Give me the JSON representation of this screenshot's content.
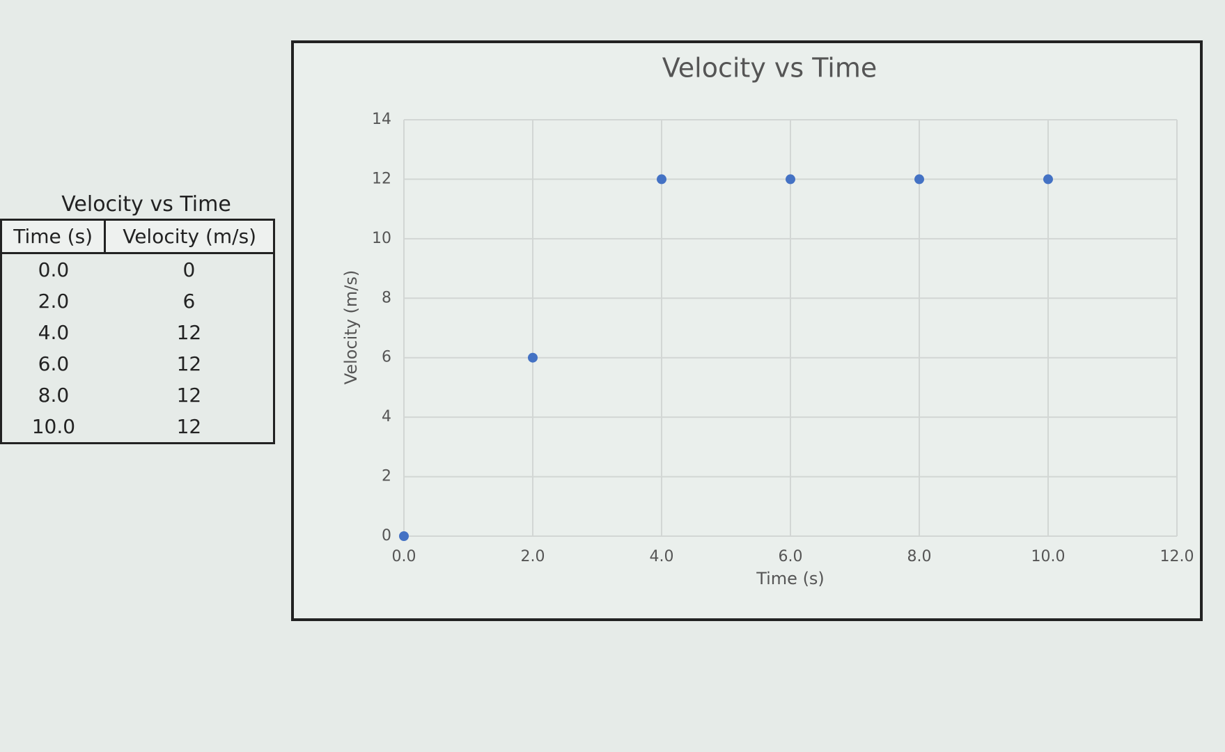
{
  "table": {
    "title": "Velocity vs Time",
    "header": [
      "Time (s)",
      "Velocity (m/s)"
    ],
    "rows": [
      [
        "0.0",
        "0"
      ],
      [
        "2.0",
        "6"
      ],
      [
        "4.0",
        "12"
      ],
      [
        "6.0",
        "12"
      ],
      [
        "8.0",
        "12"
      ],
      [
        "10.0",
        "12"
      ]
    ]
  },
  "chart_data": {
    "type": "scatter",
    "title": "Velocity vs Time",
    "x_label": "Time (s)",
    "y_label": "Velocity (m/s)",
    "x": [
      0,
      2,
      4,
      6,
      8,
      10
    ],
    "series": [
      {
        "name": "Velocity (m/s)",
        "color": "#4472c4",
        "values": [
          0,
          6,
          12,
          12,
          12,
          12
        ]
      }
    ],
    "xlim": [
      0,
      12
    ],
    "xticks": [
      {
        "value": 0,
        "label": "0.0"
      },
      {
        "value": 2,
        "label": "2.0"
      },
      {
        "value": 4,
        "label": "4.0"
      },
      {
        "value": 6,
        "label": "6.0"
      },
      {
        "value": 8,
        "label": "8.0"
      },
      {
        "value": 10,
        "label": "10.0"
      },
      {
        "value": 12,
        "label": "12.0"
      }
    ],
    "ylim": [
      0,
      14
    ],
    "yticks": [
      0,
      2,
      4,
      6,
      8,
      10,
      12,
      14
    ],
    "grid": true
  }
}
